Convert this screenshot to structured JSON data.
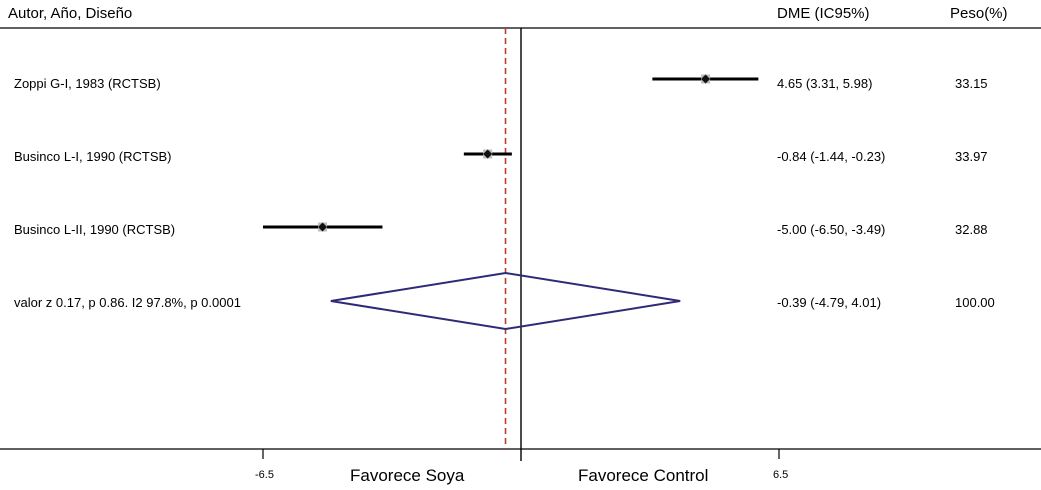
{
  "headers": {
    "author": "Autor, Año, Diseño",
    "dme": "DME (IC95%)",
    "peso": "Peso(%)"
  },
  "rows": [
    {
      "label": "Zoppi G-I, 1983 (RCTSB)",
      "dme": "4.65 (3.31, 5.98)",
      "peso": "33.15"
    },
    {
      "label": "Businco L-I, 1990 (RCTSB)",
      "dme": "-0.84 (-1.44, -0.23)",
      "peso": "33.97"
    },
    {
      "label": "Businco L-II, 1990 (RCTSB)",
      "dme": "-5.00 (-6.50, -3.49)",
      "peso": "32.88"
    },
    {
      "label": "valor z  0.17, p 0.86. I2 97.8%, p 0.0001",
      "dme": "-0.39 (-4.79, 4.01)",
      "peso": "100.00"
    }
  ],
  "axis": {
    "ticks": [
      "-6.5",
      "6.5"
    ],
    "left_label": "Favorece Soya",
    "right_label": "Favorece Control"
  },
  "colors": {
    "line": "#000000",
    "pooled_ref": "#c0392b",
    "diamond": "#2e2a78",
    "marker_box": "#bdbdbd"
  },
  "chart_data": {
    "type": "forest",
    "xlim": [
      -6.5,
      6.5
    ],
    "null_value": 0,
    "pooled_reference": -0.39,
    "studies": [
      {
        "name": "Zoppi G-I, 1983 (RCTSB)",
        "estimate": 4.65,
        "lower": 3.31,
        "upper": 5.98,
        "weight": 33.15
      },
      {
        "name": "Businco L-I, 1990 (RCTSB)",
        "estimate": -0.84,
        "lower": -1.44,
        "upper": -0.23,
        "weight": 33.97
      },
      {
        "name": "Businco L-II, 1990 (RCTSB)",
        "estimate": -5.0,
        "lower": -6.5,
        "upper": -3.49,
        "weight": 32.88
      }
    ],
    "pooled": {
      "estimate": -0.39,
      "lower": -4.79,
      "upper": 4.01,
      "weight": 100.0
    }
  }
}
